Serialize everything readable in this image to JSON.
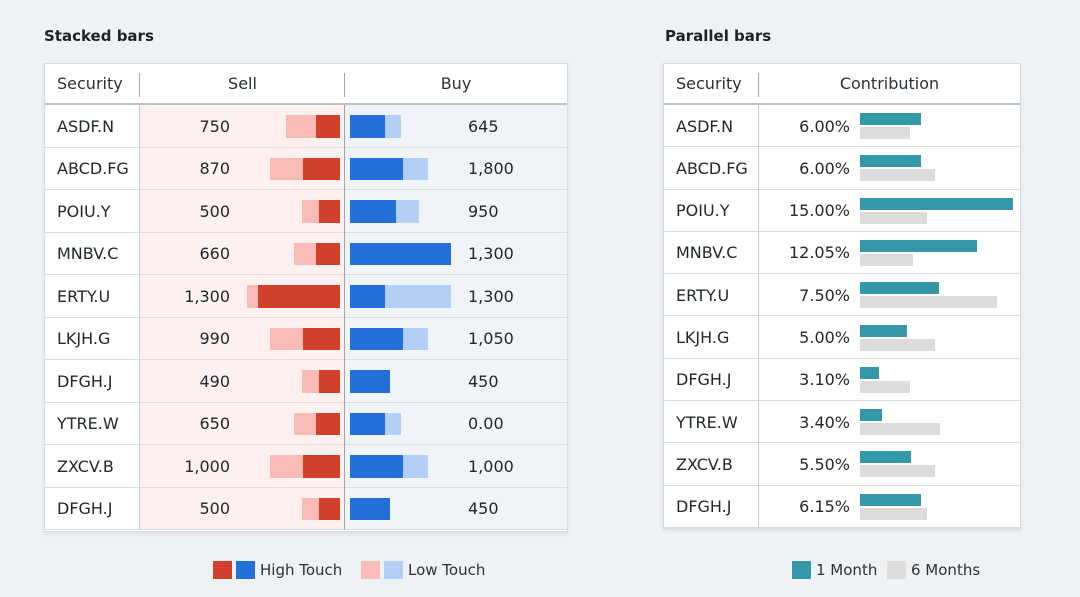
{
  "stacked": {
    "title": "Stacked bars",
    "headers": {
      "security": "Security",
      "sell": "Sell",
      "buy": "Buy"
    },
    "colors": {
      "sell_high": "#d0402b",
      "sell_low": "#f8bbb6",
      "buy_high": "#2470d9",
      "buy_low": "#b3cff5",
      "sell_bg": "#fdf0ee",
      "buy_bg": "#f0f4f9"
    },
    "rows": [
      {
        "security": "ASDF.N",
        "sell_label": "750",
        "sell_high": 150,
        "sell_low": 190,
        "buy_label": "645",
        "buy_high": 220,
        "buy_low": 100
      },
      {
        "security": "ABCD.FG",
        "sell_label": "870",
        "sell_high": 230,
        "sell_low": 210,
        "buy_label": "1,800",
        "buy_high": 330,
        "buy_low": 160
      },
      {
        "security": "POIU.Y",
        "sell_label": "500",
        "sell_high": 130,
        "sell_low": 110,
        "buy_label": "950",
        "buy_high": 290,
        "buy_low": 140
      },
      {
        "security": "MNBV.C",
        "sell_label": "660",
        "sell_high": 150,
        "sell_low": 140,
        "buy_label": "1,300",
        "buy_high": 630,
        "buy_low": 0
      },
      {
        "security": "ERTY.U",
        "sell_label": "1,300",
        "sell_high": 510,
        "sell_low": 70,
        "buy_label": "1,300",
        "buy_high": 220,
        "buy_low": 410
      },
      {
        "security": "LKJH.G",
        "sell_label": "990",
        "sell_high": 230,
        "sell_low": 210,
        "buy_label": "1,050",
        "buy_high": 330,
        "buy_low": 160
      },
      {
        "security": "DFGH.J",
        "sell_label": "490",
        "sell_high": 130,
        "sell_low": 110,
        "buy_label": "450",
        "buy_high": 250,
        "buy_low": 0
      },
      {
        "security": "YTRE.W",
        "sell_label": "650",
        "sell_high": 150,
        "sell_low": 140,
        "buy_label": "0.00",
        "buy_high": 220,
        "buy_low": 100
      },
      {
        "security": "ZXCV.B",
        "sell_label": "1,000",
        "sell_high": 230,
        "sell_low": 210,
        "buy_label": "1,000",
        "buy_high": 330,
        "buy_low": 160
      },
      {
        "security": "DFGH.J",
        "sell_label": "500",
        "sell_high": 130,
        "sell_low": 110,
        "buy_label": "450",
        "buy_high": 250,
        "buy_low": 0
      }
    ],
    "legend": {
      "high": "High Touch",
      "low": "Low Touch"
    }
  },
  "parallel": {
    "title": "Parallel bars",
    "headers": {
      "security": "Security",
      "contribution": "Contribution"
    },
    "colors": {
      "one_month": "#3598a9",
      "six_months": "#dcdcdc"
    },
    "rows": [
      {
        "security": "ASDF.N",
        "label": "6.00%",
        "one_month": 6.0,
        "six_months": 4.9
      },
      {
        "security": "ABCD.FG",
        "label": "6.00%",
        "one_month": 6.0,
        "six_months": 7.4
      },
      {
        "security": "POIU.Y",
        "label": "15.00%",
        "one_month": 15.0,
        "six_months": 6.6
      },
      {
        "security": "MNBV.C",
        "label": "12.05%",
        "one_month": 11.5,
        "six_months": 5.2
      },
      {
        "security": "ERTY.U",
        "label": "7.50%",
        "one_month": 7.75,
        "six_months": 13.4
      },
      {
        "security": "LKJH.G",
        "label": "5.00%",
        "one_month": 4.6,
        "six_months": 7.4
      },
      {
        "security": "DFGH.J",
        "label": "3.10%",
        "one_month": 1.9,
        "six_months": 4.9
      },
      {
        "security": "YTRE.W",
        "label": "3.40%",
        "one_month": 2.2,
        "six_months": 7.8
      },
      {
        "security": "ZXCV.B",
        "label": "5.50%",
        "one_month": 5.0,
        "six_months": 7.4
      },
      {
        "security": "DFGH.J",
        "label": "6.15%",
        "one_month": 6.0,
        "six_months": 6.6
      }
    ],
    "legend": {
      "one_month": "1 Month",
      "six_months": "6 Months"
    }
  }
}
